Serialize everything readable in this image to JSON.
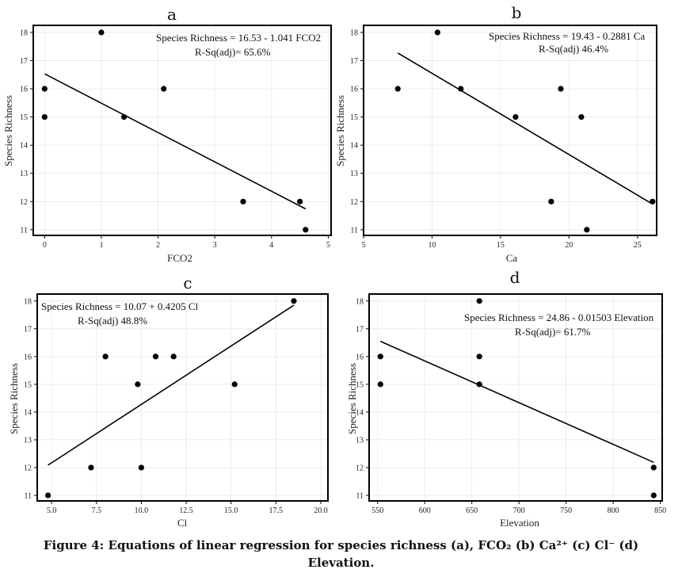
{
  "caption": {
    "line1": "Figure 4: Equations of linear regression for species richness (a), FCO₂ (b) Ca²⁺ (c) Cl⁻ (d)",
    "line2": "Elevation."
  },
  "chart_data": [
    {
      "panel": "a",
      "type": "scatter",
      "xlabel": "FCO2",
      "ylabel": "Species Richness",
      "xlim": [
        -0.2,
        5.05
      ],
      "ylim": [
        10.8,
        18.25
      ],
      "xticks": [
        0,
        1,
        2,
        3,
        4,
        5
      ],
      "xtick_labels": [
        "0",
        "1",
        "2",
        "3",
        "4",
        "5"
      ],
      "yticks": [
        11,
        12,
        13,
        14,
        15,
        16,
        17,
        18
      ],
      "points": [
        [
          0,
          16
        ],
        [
          0,
          15
        ],
        [
          1,
          18
        ],
        [
          1.4,
          15
        ],
        [
          2.1,
          16
        ],
        [
          3.5,
          12
        ],
        [
          4.5,
          12
        ],
        [
          4.6,
          11
        ]
      ],
      "fit": {
        "intercept": 16.53,
        "slope": -1.041,
        "x_range": [
          0,
          4.6
        ]
      },
      "equation": "Species Richness = 16.53 - 1.041 FCO2",
      "rsq": "R-Sq(adj)= 65.6%",
      "grid": true
    },
    {
      "panel": "b",
      "type": "scatter",
      "xlabel": "Ca",
      "ylabel": "Species Richness",
      "xlim": [
        5,
        26.4
      ],
      "ylim": [
        10.8,
        18.25
      ],
      "xticks": [
        5,
        10,
        15,
        20,
        25
      ],
      "xtick_labels": [
        "5",
        "10",
        "15",
        "20",
        "25"
      ],
      "yticks": [
        11,
        12,
        13,
        14,
        15,
        16,
        17,
        18
      ],
      "points": [
        [
          7.5,
          16
        ],
        [
          10.4,
          18
        ],
        [
          12.1,
          16
        ],
        [
          16.1,
          15
        ],
        [
          18.7,
          12
        ],
        [
          19.4,
          16
        ],
        [
          20.9,
          15
        ],
        [
          21.3,
          11
        ],
        [
          26.1,
          12
        ]
      ],
      "fit": {
        "intercept": 19.43,
        "slope": -0.2881,
        "x_range": [
          7.5,
          26.1
        ]
      },
      "equation": "Species Richness = 19.43 - 0.2881 Ca",
      "rsq": "R-Sq(adj)     46.4%",
      "grid": true
    },
    {
      "panel": "c",
      "type": "scatter",
      "xlabel": "Cl",
      "ylabel": "Species Richness",
      "xlim": [
        4.2,
        20.4
      ],
      "ylim": [
        10.8,
        18.25
      ],
      "xticks": [
        5,
        7.5,
        10,
        12.5,
        15,
        17.5,
        20
      ],
      "xtick_labels": [
        "5.0",
        "7.5",
        "10.0",
        "12.5",
        "15.0",
        "17.5",
        "20.0"
      ],
      "yticks": [
        11,
        12,
        13,
        14,
        15,
        16,
        17,
        18
      ],
      "points": [
        [
          4.8,
          11
        ],
        [
          7.2,
          12
        ],
        [
          8,
          16
        ],
        [
          9.8,
          15
        ],
        [
          10,
          12
        ],
        [
          10.8,
          16
        ],
        [
          11.8,
          16
        ],
        [
          15.2,
          15
        ],
        [
          18.5,
          18
        ]
      ],
      "fit": {
        "intercept": 10.07,
        "slope": 0.4205,
        "x_range": [
          4.8,
          18.5
        ]
      },
      "equation": "Species Richness = 10.07 + 0.4205 Cl",
      "rsq": "R-Sq(adj)     48.8%",
      "grid": true
    },
    {
      "panel": "d",
      "type": "scatter",
      "xlabel": "Elevation",
      "ylabel": "Species Richness",
      "xlim": [
        541,
        852
      ],
      "ylim": [
        10.8,
        18.25
      ],
      "xticks": [
        550,
        600,
        650,
        700,
        750,
        800,
        850
      ],
      "xtick_labels": [
        "550",
        "600",
        "650",
        "700",
        "750",
        "800",
        "850"
      ],
      "yticks": [
        11,
        12,
        13,
        14,
        15,
        16,
        17,
        18
      ],
      "points": [
        [
          553,
          16
        ],
        [
          553,
          15
        ],
        [
          658,
          18
        ],
        [
          658,
          16
        ],
        [
          658,
          15
        ],
        [
          843,
          12
        ],
        [
          843,
          11
        ]
      ],
      "fit": {
        "intercept": 24.86,
        "slope": -0.01503,
        "x_range": [
          553,
          843
        ]
      },
      "equation": "Species Richness = 24.86 - 0.01503 Elevation",
      "rsq": "R-Sq(adj)= 61.7%",
      "grid": true
    }
  ]
}
